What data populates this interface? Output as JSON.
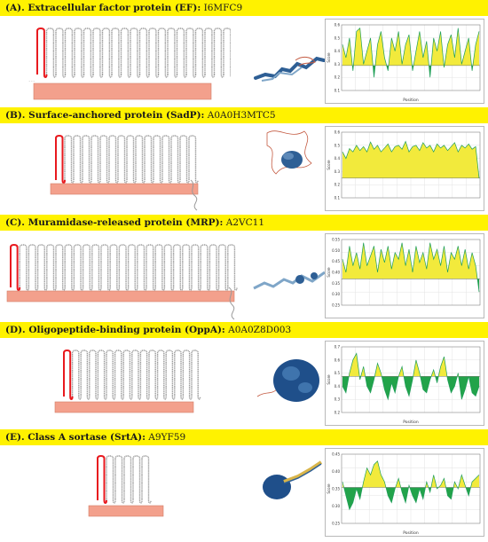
{
  "panels": [
    {
      "id": "A",
      "label": "(A). Extracellular factor protein (EF):",
      "accession": "I6MFC9",
      "plot": {
        "ylabel": "Score",
        "xlabel": "Position",
        "yticks": [
          "0.6",
          "0.5",
          "0.4",
          "0.3",
          "0.2",
          "0.1"
        ],
        "baseline_frac": 0.38,
        "profile": [
          0.7,
          0.5,
          0.8,
          0.3,
          0.9,
          0.95,
          0.4,
          0.6,
          0.8,
          0.2,
          0.7,
          0.9,
          0.5,
          0.3,
          0.8,
          0.6,
          0.9,
          0.4,
          0.7,
          0.85,
          0.3,
          0.6,
          0.9,
          0.5,
          0.75,
          0.2,
          0.8,
          0.6,
          0.9,
          0.35,
          0.7,
          0.85,
          0.5,
          0.95,
          0.4,
          0.6,
          0.8,
          0.3,
          0.7,
          0.9
        ]
      }
    },
    {
      "id": "B",
      "label": "(B). Surface-anchored protein (SadP):",
      "accession": "A0A0H3MTC5",
      "plot": {
        "ylabel": "Score",
        "xlabel": "",
        "yticks": [
          "0.6",
          "0.5",
          "0.4",
          "0.3",
          "0.2",
          "0.1"
        ],
        "baseline_frac": 0.3,
        "profile": [
          0.7,
          0.6,
          0.75,
          0.7,
          0.8,
          0.72,
          0.78,
          0.7,
          0.85,
          0.74,
          0.8,
          0.7,
          0.76,
          0.82,
          0.7,
          0.78,
          0.8,
          0.74,
          0.86,
          0.7,
          0.78,
          0.8,
          0.72,
          0.84,
          0.76,
          0.8,
          0.7,
          0.82,
          0.76,
          0.8,
          0.72,
          0.78,
          0.84,
          0.7,
          0.8,
          0.76,
          0.82,
          0.74,
          0.78,
          0.3
        ]
      }
    },
    {
      "id": "C",
      "label": "(C). Muramidase-released protein (MRP):",
      "accession": "A2VC11",
      "plot": {
        "ylabel": "Score",
        "xlabel": "",
        "yticks": [
          "0.55",
          "0.50",
          "0.45",
          "0.40",
          "0.35",
          "0.30",
          "0.25"
        ],
        "baseline_frac": 0.4,
        "profile": [
          0.7,
          0.5,
          0.9,
          0.6,
          0.8,
          0.55,
          0.95,
          0.6,
          0.75,
          0.9,
          0.5,
          0.85,
          0.65,
          0.9,
          0.55,
          0.8,
          0.7,
          0.95,
          0.6,
          0.85,
          0.5,
          0.9,
          0.65,
          0.8,
          0.55,
          0.95,
          0.7,
          0.85,
          0.6,
          0.9,
          0.5,
          0.8,
          0.7,
          0.9,
          0.6,
          0.85,
          0.55,
          0.8,
          0.6,
          0.2
        ]
      }
    },
    {
      "id": "D",
      "label": "(D). Oligopeptide-binding protein (OppA):",
      "accession": "A0A0Z8D003",
      "plot": {
        "ylabel": "Score",
        "xlabel": "Position",
        "yticks": [
          "0.7",
          "0.6",
          "0.5",
          "0.4",
          "0.3",
          "0.2"
        ],
        "baseline_frac": 0.55,
        "profile": [
          0.4,
          0.3,
          0.6,
          0.8,
          0.9,
          0.5,
          0.7,
          0.4,
          0.3,
          0.5,
          0.75,
          0.6,
          0.35,
          0.2,
          0.45,
          0.3,
          0.55,
          0.7,
          0.4,
          0.25,
          0.5,
          0.8,
          0.6,
          0.35,
          0.3,
          0.5,
          0.65,
          0.45,
          0.7,
          0.85,
          0.5,
          0.3,
          0.4,
          0.6,
          0.2,
          0.35,
          0.55,
          0.3,
          0.25,
          0.4
        ]
      }
    },
    {
      "id": "E",
      "label": "(E). Class A sortase (SrtA):",
      "accession": "A9YF59",
      "plot": {
        "ylabel": "Score",
        "xlabel": "Position",
        "yticks": [
          "0.45",
          "0.40",
          "0.35",
          "0.30",
          "0.25"
        ],
        "baseline_frac": 0.52,
        "profile": [
          0.6,
          0.4,
          0.2,
          0.3,
          0.5,
          0.35,
          0.6,
          0.8,
          0.7,
          0.85,
          0.9,
          0.7,
          0.6,
          0.4,
          0.3,
          0.5,
          0.65,
          0.45,
          0.3,
          0.55,
          0.4,
          0.3,
          0.5,
          0.35,
          0.6,
          0.45,
          0.7,
          0.5,
          0.55,
          0.65,
          0.4,
          0.35,
          0.6,
          0.5,
          0.7,
          0.55,
          0.4,
          0.6,
          0.65,
          0.7
        ]
      }
    }
  ],
  "colors": {
    "banner": "#fff200",
    "tm_segment": "#e8191e",
    "membrane": "#f3a08c",
    "coil": "#9a9a9a",
    "plot_line": "#1f9e5a",
    "plot_above": "#f2ea3c",
    "plot_below": "#22a34a",
    "structure": "#2e5f95"
  }
}
